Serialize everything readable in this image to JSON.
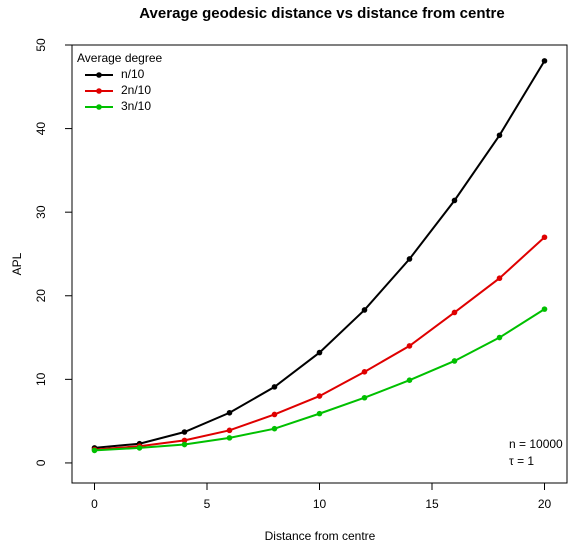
{
  "chart_data": {
    "type": "line",
    "title": "Average geodesic distance vs distance from centre",
    "x_label": "Distance from centre",
    "y_label": "APL",
    "x": [
      0,
      2,
      4,
      6,
      8,
      10,
      12,
      14,
      16,
      18,
      20
    ],
    "series": [
      {
        "name": "n/10",
        "color": "#000000",
        "values": [
          1.8,
          2.3,
          3.7,
          6.0,
          9.1,
          13.2,
          18.3,
          24.4,
          31.4,
          39.2,
          48.1
        ]
      },
      {
        "name": "2n/10",
        "color": "#df0000",
        "values": [
          1.6,
          2.0,
          2.7,
          3.9,
          5.8,
          8.0,
          10.9,
          14.0,
          18.0,
          22.1,
          27.0
        ]
      },
      {
        "name": "3n/10",
        "color": "#00c000",
        "values": [
          1.5,
          1.8,
          2.2,
          3.0,
          4.1,
          5.9,
          7.8,
          9.9,
          12.2,
          15.0,
          18.4
        ]
      }
    ],
    "legend_title": "Average degree",
    "legend": "top-left",
    "annotations": [
      "n = 10000",
      "τ = 1"
    ],
    "xlim": [
      -1,
      21
    ],
    "ylim": [
      -2.4,
      50
    ],
    "xticks": [
      0,
      5,
      10,
      15,
      20
    ],
    "yticks": [
      0,
      10,
      20,
      30,
      40,
      50
    ]
  }
}
